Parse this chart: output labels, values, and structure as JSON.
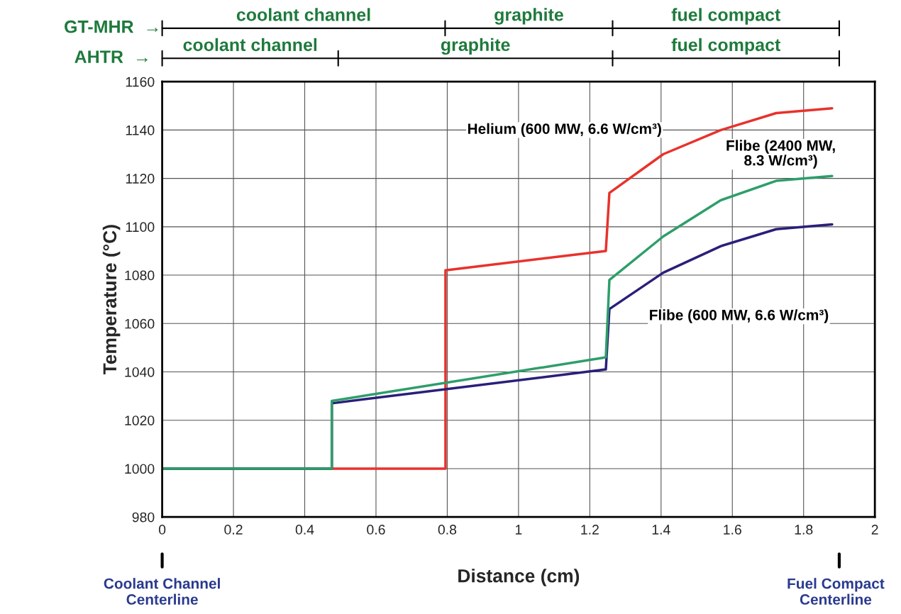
{
  "chart_data": {
    "type": "line",
    "xlabel": "Distance (cm)",
    "ylabel": "Temperature (°C)",
    "xlim": [
      0,
      2
    ],
    "xticks": [
      0,
      0.2,
      0.4,
      0.6,
      0.8,
      1,
      1.2,
      1.4,
      1.6,
      1.8,
      2
    ],
    "ylim": [
      980,
      1160
    ],
    "yticks": [
      980,
      1000,
      1020,
      1040,
      1060,
      1080,
      1100,
      1120,
      1140,
      1160
    ],
    "grid": true,
    "legend": false,
    "marker": "none",
    "line_style": "solid",
    "series": [
      {
        "name": "Helium (600 MW, 6.6 W/cm³)",
        "color": "#e8322c",
        "x": [
          0,
          0.795,
          0.795,
          1.245,
          1.255,
          1.406,
          1.568,
          1.723,
          1.88
        ],
        "values": [
          1000,
          1000,
          1082,
          1090,
          1114,
          1130,
          1140,
          1147,
          1149
        ]
      },
      {
        "name": "Flibe (600 MW, 6.6 W/cm³)",
        "color": "#2a1f7a",
        "x": [
          0,
          0.476,
          0.476,
          1.245,
          1.255,
          1.406,
          1.568,
          1.723,
          1.88
        ],
        "values": [
          1000,
          1000,
          1027,
          1041,
          1066,
          1081,
          1092,
          1099,
          1101
        ]
      },
      {
        "name": "Flibe (2400 MW, 8.3 W/cm³)",
        "color": "#2e9e6a",
        "x": [
          0,
          0.476,
          0.476,
          1.245,
          1.255,
          1.406,
          1.568,
          1.723,
          1.88
        ],
        "values": [
          1000,
          1000,
          1028,
          1046,
          1078,
          1096,
          1111,
          1119,
          1121
        ]
      }
    ],
    "annotations": [
      "GT-MHR  →",
      "AHTR  →",
      "coolant channel",
      "graphite",
      "fuel compact",
      "coolant channel",
      "graphite",
      "fuel compact",
      "Coolant Channel\nCenterline",
      "Fuel Compact\nCenterline"
    ]
  }
}
